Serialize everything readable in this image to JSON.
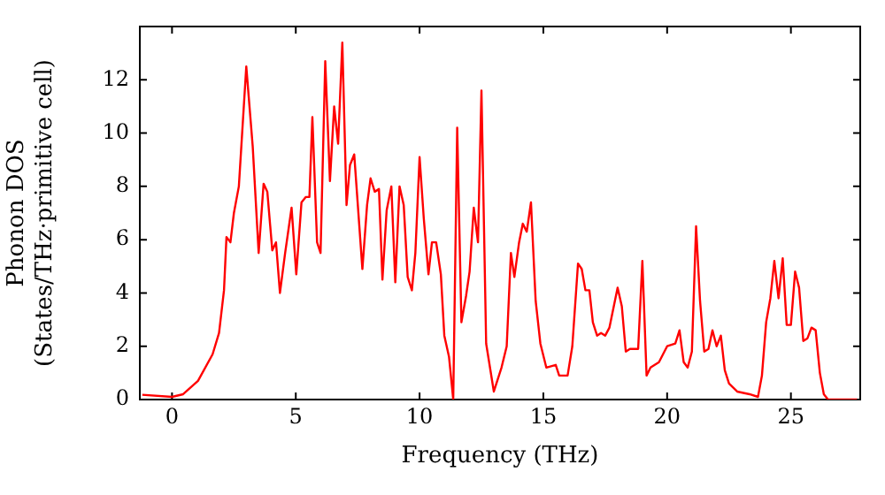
{
  "chart_data": {
    "type": "line",
    "xlabel": "Frequency (THz)",
    "ylabel": "Phonon DOS\n(States/THz·primitive cell)",
    "xlim": [
      -1.3,
      27.8
    ],
    "ylim": [
      0,
      14
    ],
    "xticks": [
      0,
      5,
      10,
      15,
      20,
      25
    ],
    "yticks": [
      0,
      2,
      4,
      6,
      8,
      10,
      12
    ],
    "grid": false,
    "legend": false,
    "marker": "none",
    "line_style": "solid",
    "x": [
      -1.2,
      0,
      0.45,
      1.05,
      1.64,
      1.9,
      2.1,
      2.2,
      2.36,
      2.5,
      2.7,
      3.0,
      3.26,
      3.5,
      3.7,
      3.85,
      4.05,
      4.2,
      4.36,
      4.57,
      4.83,
      5.02,
      5.23,
      5.4,
      5.55,
      5.67,
      5.86,
      6.0,
      6.19,
      6.38,
      6.55,
      6.71,
      6.88,
      7.05,
      7.19,
      7.36,
      7.69,
      7.88,
      8.02,
      8.19,
      8.36,
      8.5,
      8.67,
      8.86,
      9.02,
      9.19,
      9.36,
      9.52,
      9.69,
      9.83,
      10.0,
      10.17,
      10.36,
      10.5,
      10.67,
      10.86,
      11.0,
      11.19,
      11.36,
      11.52,
      11.69,
      11.88,
      12.02,
      12.19,
      12.36,
      12.5,
      12.69,
      13.0,
      13.31,
      13.52,
      13.69,
      13.83,
      14.02,
      14.17,
      14.33,
      14.5,
      14.69,
      14.88,
      15.12,
      15.5,
      15.64,
      15.98,
      16.17,
      16.4,
      16.55,
      16.7,
      16.86,
      17.0,
      17.17,
      17.33,
      17.5,
      17.67,
      18.0,
      18.17,
      18.33,
      18.5,
      18.83,
      19.0,
      19.17,
      19.33,
      19.67,
      20.0,
      20.33,
      20.5,
      20.67,
      20.83,
      21.0,
      21.17,
      21.33,
      21.5,
      21.67,
      21.83,
      22.0,
      22.17,
      22.33,
      22.5,
      22.83,
      23.33,
      23.67,
      23.83,
      24.0,
      24.17,
      24.33,
      24.5,
      24.67,
      24.83,
      25.0,
      25.17,
      25.33,
      25.5,
      25.67,
      25.83,
      26.0,
      26.17,
      26.33,
      26.5,
      27.67
    ],
    "series": [
      {
        "color": "#ff0000",
        "values": [
          0.18,
          0.1,
          0.2,
          0.7,
          1.7,
          2.5,
          4.1,
          6.1,
          5.9,
          7.0,
          8.0,
          12.5,
          9.5,
          5.5,
          8.1,
          7.8,
          5.6,
          5.9,
          4.0,
          5.5,
          7.2,
          4.7,
          7.4,
          7.6,
          7.6,
          10.6,
          5.9,
          5.5,
          12.7,
          8.2,
          11.0,
          9.6,
          13.4,
          7.3,
          8.8,
          9.2,
          4.9,
          7.3,
          8.3,
          7.8,
          7.9,
          4.5,
          7.1,
          8.0,
          4.4,
          8.0,
          7.3,
          4.6,
          4.1,
          5.5,
          9.1,
          6.8,
          4.7,
          5.9,
          5.9,
          4.7,
          2.4,
          1.6,
          0,
          10.2,
          2.9,
          3.9,
          4.8,
          7.2,
          5.9,
          11.6,
          2.1,
          0.3,
          1.2,
          2.0,
          5.5,
          4.6,
          5.9,
          6.6,
          6.3,
          7.4,
          3.7,
          2.1,
          1.2,
          1.3,
          0.9,
          0.9,
          2.0,
          5.1,
          4.9,
          4.1,
          4.1,
          2.9,
          2.4,
          2.5,
          2.4,
          2.7,
          4.2,
          3.5,
          1.8,
          1.9,
          1.9,
          5.2,
          0.9,
          1.2,
          1.4,
          2.0,
          2.1,
          2.6,
          1.4,
          1.2,
          1.8,
          6.5,
          3.7,
          1.8,
          1.9,
          2.6,
          2.0,
          2.4,
          1.1,
          0.6,
          0.3,
          0.2,
          0.1,
          0.9,
          2.9,
          3.8,
          5.2,
          3.8,
          5.3,
          2.8,
          2.8,
          4.8,
          4.2,
          2.2,
          2.3,
          2.7,
          2.6,
          1.0,
          0.2,
          0,
          0
        ]
      }
    ]
  }
}
